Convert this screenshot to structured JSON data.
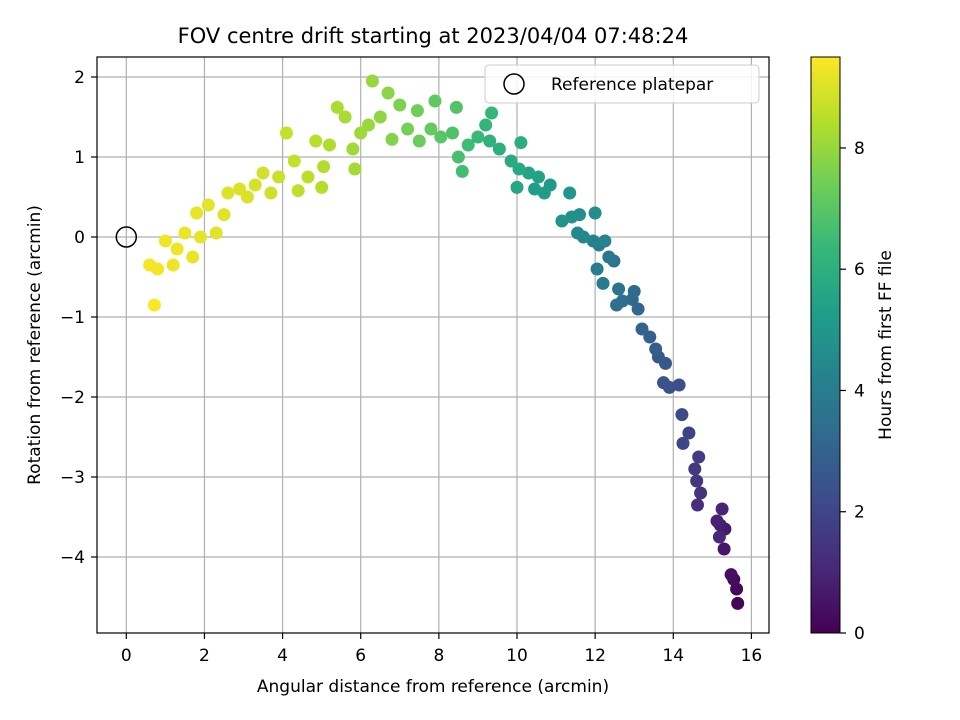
{
  "chart_data": {
    "type": "scatter",
    "title": "FOV centre drift starting at 2023/04/04 07:48:24",
    "xlabel": "Angular distance from reference (arcmin)",
    "ylabel": "Rotation from reference (arcmin)",
    "xlim": [
      -0.75,
      16.45
    ],
    "ylim": [
      -4.95,
      2.25
    ],
    "xticks": [
      0,
      2,
      4,
      6,
      8,
      10,
      12,
      14,
      16
    ],
    "xtick_labels": [
      "0",
      "2",
      "4",
      "6",
      "8",
      "10",
      "12",
      "14",
      "16"
    ],
    "yticks": [
      2,
      1,
      0,
      -1,
      -2,
      -3,
      -4
    ],
    "ytick_labels": [
      "2",
      "1",
      "0",
      "−1",
      "−2",
      "−3",
      "−4"
    ],
    "grid": true,
    "legend": {
      "placement": "top-right",
      "entries": [
        {
          "label": "Reference platepar",
          "marker": "open-circle",
          "color": "#000000"
        }
      ]
    },
    "reference_point": {
      "x": 0,
      "y": 0
    },
    "colorbar": {
      "label": "Hours from first FF file",
      "min": 0,
      "max": 9.5,
      "ticks": [
        0,
        2,
        4,
        6,
        8
      ],
      "tick_labels": [
        "0",
        "2",
        "4",
        "6",
        "8"
      ],
      "colormap": "viridis",
      "colormap_stops": [
        "#440154",
        "#482878",
        "#3e4989",
        "#31688e",
        "#26828e",
        "#1f9e89",
        "#35b779",
        "#6ece58",
        "#b5de2b",
        "#fde725"
      ]
    },
    "series": [
      {
        "marker": "filled-circle",
        "points": [
          [
            15.65,
            -4.58,
            0.1
          ],
          [
            15.62,
            -4.4,
            0.2
          ],
          [
            15.55,
            -4.28,
            0.3
          ],
          [
            15.48,
            -4.22,
            0.4
          ],
          [
            15.3,
            -3.9,
            0.6
          ],
          [
            15.32,
            -3.65,
            0.7
          ],
          [
            15.2,
            -3.6,
            0.8
          ],
          [
            15.12,
            -3.55,
            0.9
          ],
          [
            15.25,
            -3.4,
            1.0
          ],
          [
            15.18,
            -3.75,
            1.1
          ],
          [
            14.62,
            -3.35,
            1.3
          ],
          [
            14.7,
            -3.2,
            1.4
          ],
          [
            14.6,
            -3.05,
            1.5
          ],
          [
            14.55,
            -2.9,
            1.6
          ],
          [
            14.65,
            -2.75,
            1.7
          ],
          [
            14.4,
            -2.45,
            1.9
          ],
          [
            14.25,
            -2.58,
            2.0
          ],
          [
            14.22,
            -2.22,
            2.1
          ],
          [
            14.15,
            -1.85,
            2.3
          ],
          [
            13.9,
            -1.88,
            2.4
          ],
          [
            13.75,
            -1.82,
            2.5
          ],
          [
            13.8,
            -1.58,
            2.6
          ],
          [
            13.62,
            -1.5,
            2.7
          ],
          [
            13.55,
            -1.4,
            2.8
          ],
          [
            13.4,
            -1.25,
            2.9
          ],
          [
            13.2,
            -1.15,
            3.0
          ],
          [
            13.1,
            -0.9,
            3.1
          ],
          [
            12.95,
            -0.78,
            3.2
          ],
          [
            13.0,
            -0.68,
            3.3
          ],
          [
            12.7,
            -0.8,
            3.4
          ],
          [
            12.55,
            -0.85,
            3.5
          ],
          [
            12.6,
            -0.65,
            3.6
          ],
          [
            12.48,
            -0.3,
            3.7
          ],
          [
            12.35,
            -0.25,
            3.8
          ],
          [
            12.2,
            -0.58,
            3.9
          ],
          [
            12.05,
            -0.4,
            4.0
          ],
          [
            12.1,
            -0.1,
            4.1
          ],
          [
            11.95,
            -0.05,
            4.2
          ],
          [
            12.25,
            -0.05,
            4.3
          ],
          [
            11.7,
            0.0,
            4.4
          ],
          [
            11.55,
            0.05,
            4.5
          ],
          [
            12.0,
            0.3,
            4.6
          ],
          [
            11.6,
            0.28,
            4.7
          ],
          [
            11.4,
            0.25,
            4.8
          ],
          [
            11.15,
            0.2,
            4.9
          ],
          [
            11.35,
            0.55,
            5.0
          ],
          [
            10.85,
            0.65,
            5.1
          ],
          [
            10.7,
            0.55,
            5.2
          ],
          [
            10.45,
            0.6,
            5.3
          ],
          [
            10.55,
            0.75,
            5.4
          ],
          [
            10.3,
            0.8,
            5.5
          ],
          [
            10.0,
            0.62,
            5.6
          ],
          [
            10.05,
            0.85,
            5.7
          ],
          [
            9.85,
            0.95,
            5.8
          ],
          [
            10.1,
            1.18,
            5.9
          ],
          [
            9.55,
            1.1,
            6.0
          ],
          [
            9.3,
            1.2,
            6.1
          ],
          [
            9.2,
            1.4,
            6.2
          ],
          [
            9.35,
            1.55,
            6.3
          ],
          [
            9.0,
            1.25,
            6.4
          ],
          [
            8.75,
            1.15,
            6.5
          ],
          [
            8.6,
            0.82,
            6.6
          ],
          [
            8.5,
            1.0,
            6.7
          ],
          [
            8.35,
            1.3,
            6.8
          ],
          [
            8.45,
            1.62,
            6.9
          ],
          [
            8.05,
            1.25,
            7.0
          ],
          [
            7.9,
            1.7,
            7.1
          ],
          [
            7.8,
            1.35,
            7.2
          ],
          [
            7.5,
            1.2,
            7.3
          ],
          [
            7.45,
            1.58,
            7.4
          ],
          [
            7.2,
            1.35,
            7.5
          ],
          [
            7.0,
            1.65,
            7.6
          ],
          [
            6.8,
            1.22,
            7.7
          ],
          [
            6.7,
            1.8,
            7.8
          ],
          [
            6.5,
            1.5,
            7.9
          ],
          [
            6.3,
            1.95,
            8.0
          ],
          [
            6.2,
            1.4,
            8.05
          ],
          [
            6.0,
            1.3,
            8.1
          ],
          [
            5.8,
            1.1,
            8.15
          ],
          [
            5.85,
            0.85,
            8.2
          ],
          [
            5.6,
            1.5,
            8.25
          ],
          [
            5.4,
            1.62,
            8.3
          ],
          [
            5.2,
            1.15,
            8.35
          ],
          [
            5.05,
            0.88,
            8.4
          ],
          [
            5.0,
            0.62,
            8.45
          ],
          [
            4.85,
            1.2,
            8.5
          ],
          [
            4.65,
            0.75,
            8.55
          ],
          [
            4.4,
            0.58,
            8.6
          ],
          [
            4.3,
            0.95,
            8.65
          ],
          [
            4.1,
            1.3,
            8.7
          ],
          [
            3.9,
            0.75,
            8.75
          ],
          [
            3.7,
            0.55,
            8.8
          ],
          [
            3.5,
            0.8,
            8.85
          ],
          [
            3.3,
            0.65,
            8.9
          ],
          [
            3.1,
            0.5,
            8.95
          ],
          [
            2.9,
            0.6,
            9.0
          ],
          [
            2.6,
            0.55,
            9.02
          ],
          [
            2.5,
            0.28,
            9.05
          ],
          [
            2.3,
            0.05,
            9.08
          ],
          [
            2.1,
            0.4,
            9.1
          ],
          [
            1.9,
            0.0,
            9.15
          ],
          [
            1.8,
            0.3,
            9.18
          ],
          [
            1.7,
            -0.25,
            9.2
          ],
          [
            1.5,
            0.05,
            9.25
          ],
          [
            1.3,
            -0.15,
            9.28
          ],
          [
            1.2,
            -0.35,
            9.3
          ],
          [
            1.0,
            -0.05,
            9.33
          ],
          [
            0.8,
            -0.4,
            9.36
          ],
          [
            0.6,
            -0.35,
            9.4
          ],
          [
            0.72,
            -0.85,
            9.45
          ]
        ]
      }
    ]
  }
}
